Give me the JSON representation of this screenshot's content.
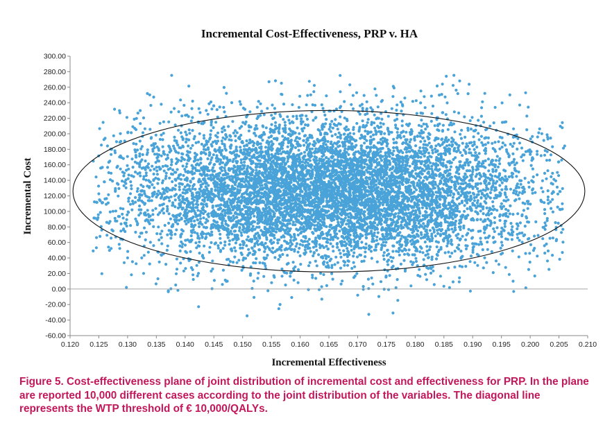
{
  "chart_data": {
    "type": "scatter",
    "title": "Incremental Cost-Effectiveness, PRP v. HA",
    "xlabel": "Incremental Effectiveness",
    "ylabel": "Incremental Cost",
    "xlim": [
      0.12,
      0.21
    ],
    "ylim": [
      -60,
      300
    ],
    "x_ticks": [
      "0.120",
      "0.125",
      "0.130",
      "0.135",
      "0.140",
      "0.145",
      "0.150",
      "0.155",
      "0.160",
      "0.165",
      "0.170",
      "0.175",
      "0.180",
      "0.185",
      "0.190",
      "0.195",
      "0.200",
      "0.205",
      "0.210"
    ],
    "y_ticks": [
      "300.00",
      "280.00",
      "260.00",
      "240.00",
      "220.00",
      "200.00",
      "180.00",
      "160.00",
      "140.00",
      "120.00",
      "100.00",
      "80.00",
      "60.00",
      "40.00",
      "20.00",
      "0.00",
      "-20.00",
      "-40.00",
      "-60.00"
    ],
    "point_color": "#4aa3d8",
    "n_cases": 10000,
    "distribution": {
      "x_mean": 0.165,
      "x_sd": 0.018,
      "x_range": [
        0.124,
        0.206
      ],
      "y_mean": 127,
      "y_sd": 47,
      "y_range": [
        -50,
        276
      ]
    },
    "ellipse": {
      "center": [
        0.165,
        126
      ],
      "x_semi_axis": 0.0445,
      "y_semi_axis": 104
    },
    "grid": false,
    "legend": "none"
  },
  "caption": "Figure 5. Cost-effectiveness plane of joint distribution of incremental cost and effectiveness for PRP. In the plane are reported 10,000 different cases according to the joint distribution of the variables. The diagonal line represents the WTP threshold of € 10,000/QALYs."
}
